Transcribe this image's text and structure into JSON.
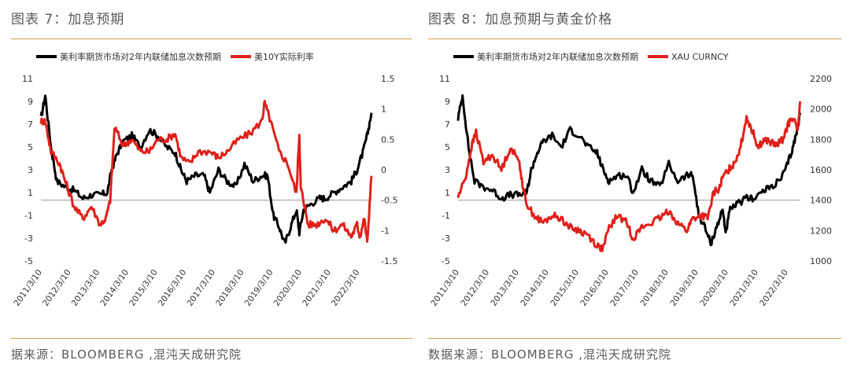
{
  "left": {
    "title": "图表 7：加息预期",
    "source": "据来源：BLOOMBERG ,混沌天成研究院"
  },
  "right": {
    "title": "图表 8：加息预期与黄金价格",
    "source": "数据来源：BLOOMBERG ,混沌天成研究院"
  },
  "chart_data": [
    {
      "type": "line",
      "title": "",
      "x_ticks": [
        "2011/3/10",
        "2012/3/10",
        "2013/3/10",
        "2014/3/10",
        "2015/3/10",
        "2016/3/10",
        "2017/3/10",
        "2018/3/10",
        "2019/3/10",
        "2020/3/10",
        "2021/3/10",
        "2022/3/10"
      ],
      "x_range": [
        2011.15,
        2022.6
      ],
      "y_left": {
        "ticks": [
          11,
          9,
          7,
          5,
          3,
          1,
          -1,
          -3,
          -5
        ],
        "range": [
          -5,
          11
        ]
      },
      "y_right": {
        "ticks": [
          "1.5",
          "1",
          "0.5",
          "0",
          "-0.5",
          "-1",
          "-1.5"
        ],
        "range": [
          -1.5,
          1.5
        ]
      },
      "baseline_y": -0.5,
      "legend_position": "top-left",
      "series": [
        {
          "name": "美利率期货市场对2年内联储加息次数预期",
          "axis": "left",
          "color": "#000000",
          "x": [
            2011.15,
            2011.3,
            2011.5,
            2011.7,
            2012.0,
            2012.3,
            2012.6,
            2012.9,
            2013.2,
            2013.45,
            2013.6,
            2013.8,
            2014.0,
            2014.3,
            2014.6,
            2014.9,
            2015.2,
            2015.5,
            2015.8,
            2016.0,
            2016.2,
            2016.5,
            2016.8,
            2017.0,
            2017.3,
            2017.6,
            2017.9,
            2018.2,
            2018.5,
            2018.8,
            2019.0,
            2019.2,
            2019.4,
            2019.6,
            2019.8,
            2020.0,
            2020.1,
            2020.25,
            2020.5,
            2020.8,
            2021.0,
            2021.3,
            2021.6,
            2021.9,
            2022.1,
            2022.3,
            2022.45,
            2022.6
          ],
          "y": [
            7.5,
            9.5,
            5,
            2,
            1.5,
            1.2,
            0.5,
            0.8,
            0.8,
            1,
            3,
            4.5,
            5.5,
            6,
            5,
            6.5,
            6,
            5,
            4.5,
            3,
            2,
            2.5,
            2.5,
            1,
            3,
            2,
            1.5,
            3.5,
            2,
            2.5,
            2.5,
            -1,
            -2,
            -3.5,
            -2,
            -0.5,
            -2.5,
            -0.5,
            0,
            0.5,
            0.5,
            1,
            1.5,
            2,
            3,
            4.5,
            6,
            8
          ]
        },
        {
          "name": "美10Y实际利率",
          "axis": "right",
          "color": "#e0201a",
          "x": [
            2011.15,
            2011.3,
            2011.5,
            2011.8,
            2012.0,
            2012.3,
            2012.6,
            2012.9,
            2013.2,
            2013.4,
            2013.55,
            2013.7,
            2014.0,
            2014.3,
            2014.6,
            2014.9,
            2015.2,
            2015.5,
            2015.8,
            2016.0,
            2016.3,
            2016.6,
            2017.0,
            2017.3,
            2017.6,
            2018.0,
            2018.4,
            2018.8,
            2018.9,
            2019.1,
            2019.4,
            2019.7,
            2020.0,
            2020.1,
            2020.15,
            2020.25,
            2020.4,
            2020.7,
            2021.0,
            2021.3,
            2021.6,
            2021.9,
            2022.1,
            2022.2,
            2022.35,
            2022.45,
            2022.6
          ],
          "y": [
            0.8,
            0.8,
            0.3,
            0.1,
            -0.2,
            -0.6,
            -0.8,
            -0.6,
            -0.9,
            -0.8,
            -0.5,
            0.7,
            0.4,
            0.5,
            0.3,
            0.3,
            0.5,
            0.5,
            0.6,
            0.2,
            0.1,
            0.3,
            0.3,
            0.2,
            0.3,
            0.5,
            0.6,
            0.8,
            1.1,
            0.8,
            0.3,
            0.1,
            -0.4,
            0.6,
            -0.3,
            -0.5,
            -0.9,
            -0.9,
            -0.8,
            -1.0,
            -0.9,
            -1.1,
            -0.9,
            -1.1,
            -0.8,
            -1.2,
            -0.1
          ]
        }
      ]
    },
    {
      "type": "line",
      "title": "",
      "x_ticks": [
        "2011/3/10",
        "2012/3/10",
        "2013/3/10",
        "2014/3/10",
        "2015/3/10",
        "2016/3/10",
        "2017/3/10",
        "2018/3/10",
        "2019/3/10",
        "2020/3/10",
        "2021/3/10",
        "2022/3/10"
      ],
      "x_range": [
        2011.15,
        2022.6
      ],
      "y_left": {
        "ticks": [
          11,
          9,
          7,
          5,
          3,
          1,
          -1,
          -3,
          -5
        ],
        "range": [
          -5,
          11
        ]
      },
      "y_right": {
        "ticks": [
          "2200",
          "2000",
          "1800",
          "1600",
          "1400",
          "1200",
          "1000"
        ],
        "range": [
          1000,
          2200
        ]
      },
      "baseline_y": 1400,
      "legend_position": "top-left",
      "series": [
        {
          "name": "美利率期货市场对2年内联储加息次数预期",
          "axis": "left",
          "color": "#000000",
          "x": [
            2011.15,
            2011.3,
            2011.5,
            2011.7,
            2012.0,
            2012.3,
            2012.6,
            2012.9,
            2013.2,
            2013.45,
            2013.6,
            2013.8,
            2014.0,
            2014.3,
            2014.6,
            2014.9,
            2015.2,
            2015.5,
            2015.8,
            2016.0,
            2016.2,
            2016.5,
            2016.8,
            2017.0,
            2017.3,
            2017.6,
            2017.9,
            2018.2,
            2018.5,
            2018.8,
            2019.0,
            2019.2,
            2019.4,
            2019.6,
            2019.8,
            2020.0,
            2020.1,
            2020.25,
            2020.5,
            2020.8,
            2021.0,
            2021.3,
            2021.6,
            2021.9,
            2022.1,
            2022.3,
            2022.45,
            2022.6
          ],
          "y": [
            7.5,
            9.5,
            5,
            2,
            1.5,
            1.2,
            0.5,
            0.8,
            0.8,
            1,
            3,
            4.5,
            5.5,
            6,
            5,
            6.5,
            6,
            5,
            4.5,
            3,
            2,
            2.5,
            2.5,
            1,
            3,
            2,
            1.5,
            3.5,
            2,
            2.5,
            2.5,
            -1,
            -2,
            -3.5,
            -2,
            -0.5,
            -2.5,
            -0.5,
            0,
            0.5,
            0.5,
            1,
            1.5,
            2,
            3,
            4.5,
            6,
            8
          ]
        },
        {
          "name": "XAU CURNCY",
          "axis": "right",
          "color": "#e0201a",
          "x": [
            2011.15,
            2011.4,
            2011.6,
            2011.75,
            2012.0,
            2012.3,
            2012.6,
            2012.9,
            2013.2,
            2013.35,
            2013.5,
            2013.8,
            2014.0,
            2014.3,
            2014.6,
            2014.9,
            2015.2,
            2015.5,
            2015.8,
            2016.0,
            2016.2,
            2016.5,
            2016.8,
            2017.0,
            2017.3,
            2017.6,
            2017.9,
            2018.2,
            2018.5,
            2018.8,
            2019.0,
            2019.3,
            2019.5,
            2019.7,
            2019.9,
            2020.0,
            2020.2,
            2020.4,
            2020.6,
            2020.8,
            2021.0,
            2021.2,
            2021.4,
            2021.6,
            2021.8,
            2022.0,
            2022.2,
            2022.35,
            2022.5,
            2022.6
          ],
          "y": [
            1420,
            1550,
            1750,
            1850,
            1650,
            1700,
            1600,
            1750,
            1650,
            1450,
            1350,
            1280,
            1250,
            1300,
            1280,
            1220,
            1200,
            1170,
            1100,
            1080,
            1220,
            1300,
            1250,
            1150,
            1220,
            1250,
            1280,
            1330,
            1250,
            1200,
            1280,
            1300,
            1280,
            1450,
            1480,
            1550,
            1600,
            1650,
            1750,
            1950,
            1850,
            1750,
            1800,
            1780,
            1760,
            1800,
            1900,
            1950,
            1850,
            2050
          ]
        }
      ]
    }
  ]
}
